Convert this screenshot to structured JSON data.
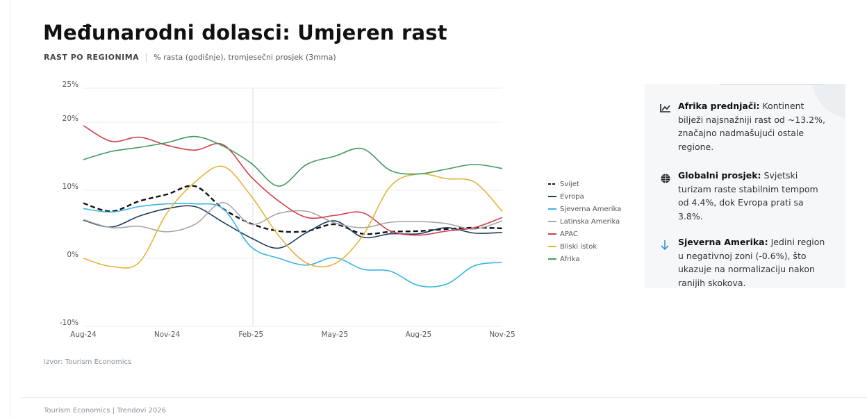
{
  "header": {
    "title": "Međunarodni dolasci: Umjeren rast",
    "subtitle_label": "RAST PO REGIONIMA",
    "subtitle": "% rasta (godišnje), tromjesečni prosjek (3mma)"
  },
  "chart_data": {
    "type": "line",
    "categories": [
      "Aug-24",
      null,
      null,
      "Nov-24",
      null,
      null,
      "Feb-25",
      null,
      null,
      "May-25",
      null,
      null,
      "Aug-25",
      null,
      null,
      "Nov-25"
    ],
    "series": [
      {
        "name": "Svijet",
        "color": "#111111",
        "dashed": true,
        "values": [
          8.1,
          6.9,
          8.4,
          9.4,
          10.6,
          7.3,
          5.1,
          4.0,
          4.0,
          5.0,
          3.6,
          3.9,
          4.0,
          4.3,
          4.5,
          4.4
        ]
      },
      {
        "name": "Evropa",
        "color": "#1f3a5f",
        "values": [
          5.6,
          4.6,
          6.2,
          7.3,
          7.6,
          5.3,
          3.0,
          1.5,
          3.8,
          5.5,
          3.1,
          3.6,
          3.6,
          4.5,
          3.7,
          3.8
        ]
      },
      {
        "name": "Sjeverna Amerika",
        "color": "#3bb4e5",
        "values": [
          7.3,
          6.8,
          7.6,
          8.0,
          8.0,
          7.3,
          1.7,
          0,
          -1.0,
          0.1,
          -1.6,
          -1.9,
          -4.0,
          -3.8,
          -1.1,
          -0.6
        ]
      },
      {
        "name": "Latinska Amerika",
        "color": "#a8a8a8",
        "values": [
          5.7,
          4.5,
          4.7,
          3.9,
          5.0,
          8.2,
          5.0,
          6.6,
          6.9,
          5.2,
          4.5,
          5.3,
          5.4,
          5.1,
          4.3,
          5.5
        ]
      },
      {
        "name": "APAC",
        "color": "#d0404a",
        "values": [
          19.5,
          17.2,
          17.8,
          16.6,
          15.9,
          16.7,
          12.0,
          8.4,
          6.0,
          6.3,
          6.7,
          4.0,
          3.4,
          4.0,
          4.5,
          6.0
        ]
      },
      {
        "name": "Bliski istok",
        "color": "#e4b33a",
        "values": [
          0,
          -1.2,
          -0.6,
          6.7,
          11.2,
          13.5,
          9.2,
          3.3,
          -0.7,
          -0.8,
          3.3,
          10.6,
          12.4,
          11.7,
          11.2,
          6.9
        ]
      },
      {
        "name": "Afrika",
        "color": "#3f9a5d",
        "values": [
          14.5,
          15.7,
          16.3,
          17.0,
          17.9,
          16.5,
          14.0,
          10.6,
          13.8,
          15.0,
          16.1,
          12.9,
          12.4,
          13.1,
          13.8,
          13.2
        ]
      }
    ],
    "ylim": [
      -10,
      25
    ],
    "yticks": [
      {
        "value": 25,
        "label": "25%"
      },
      {
        "value": 20,
        "label": "20%"
      },
      {
        "value": 10,
        "label": "10%"
      },
      {
        "value": 0,
        "label": "0%"
      },
      {
        "value": -10,
        "label": "-10%"
      }
    ],
    "grid": true
  },
  "source": "Izvor: Tourism Economics",
  "insights": [
    {
      "heading": "Afrika prednjači:",
      "text": "Kontinent bilježi najsnažniji rast od ~13.2%, značajno nadmašujući ostale regione."
    },
    {
      "heading": "Globalni prosjek:",
      "text": "Svjetski turizam raste stabilnim tempom od 4.4%, dok Evropa prati sa 3.8%."
    },
    {
      "heading": "Sjeverna Amerika:",
      "text": "Jedini region u negativnoj zoni (-0.6%), što ukazuje na normalizaciju nakon ranijih skokova."
    }
  ],
  "footer": "Tourism Economics | Trendovi 2026"
}
